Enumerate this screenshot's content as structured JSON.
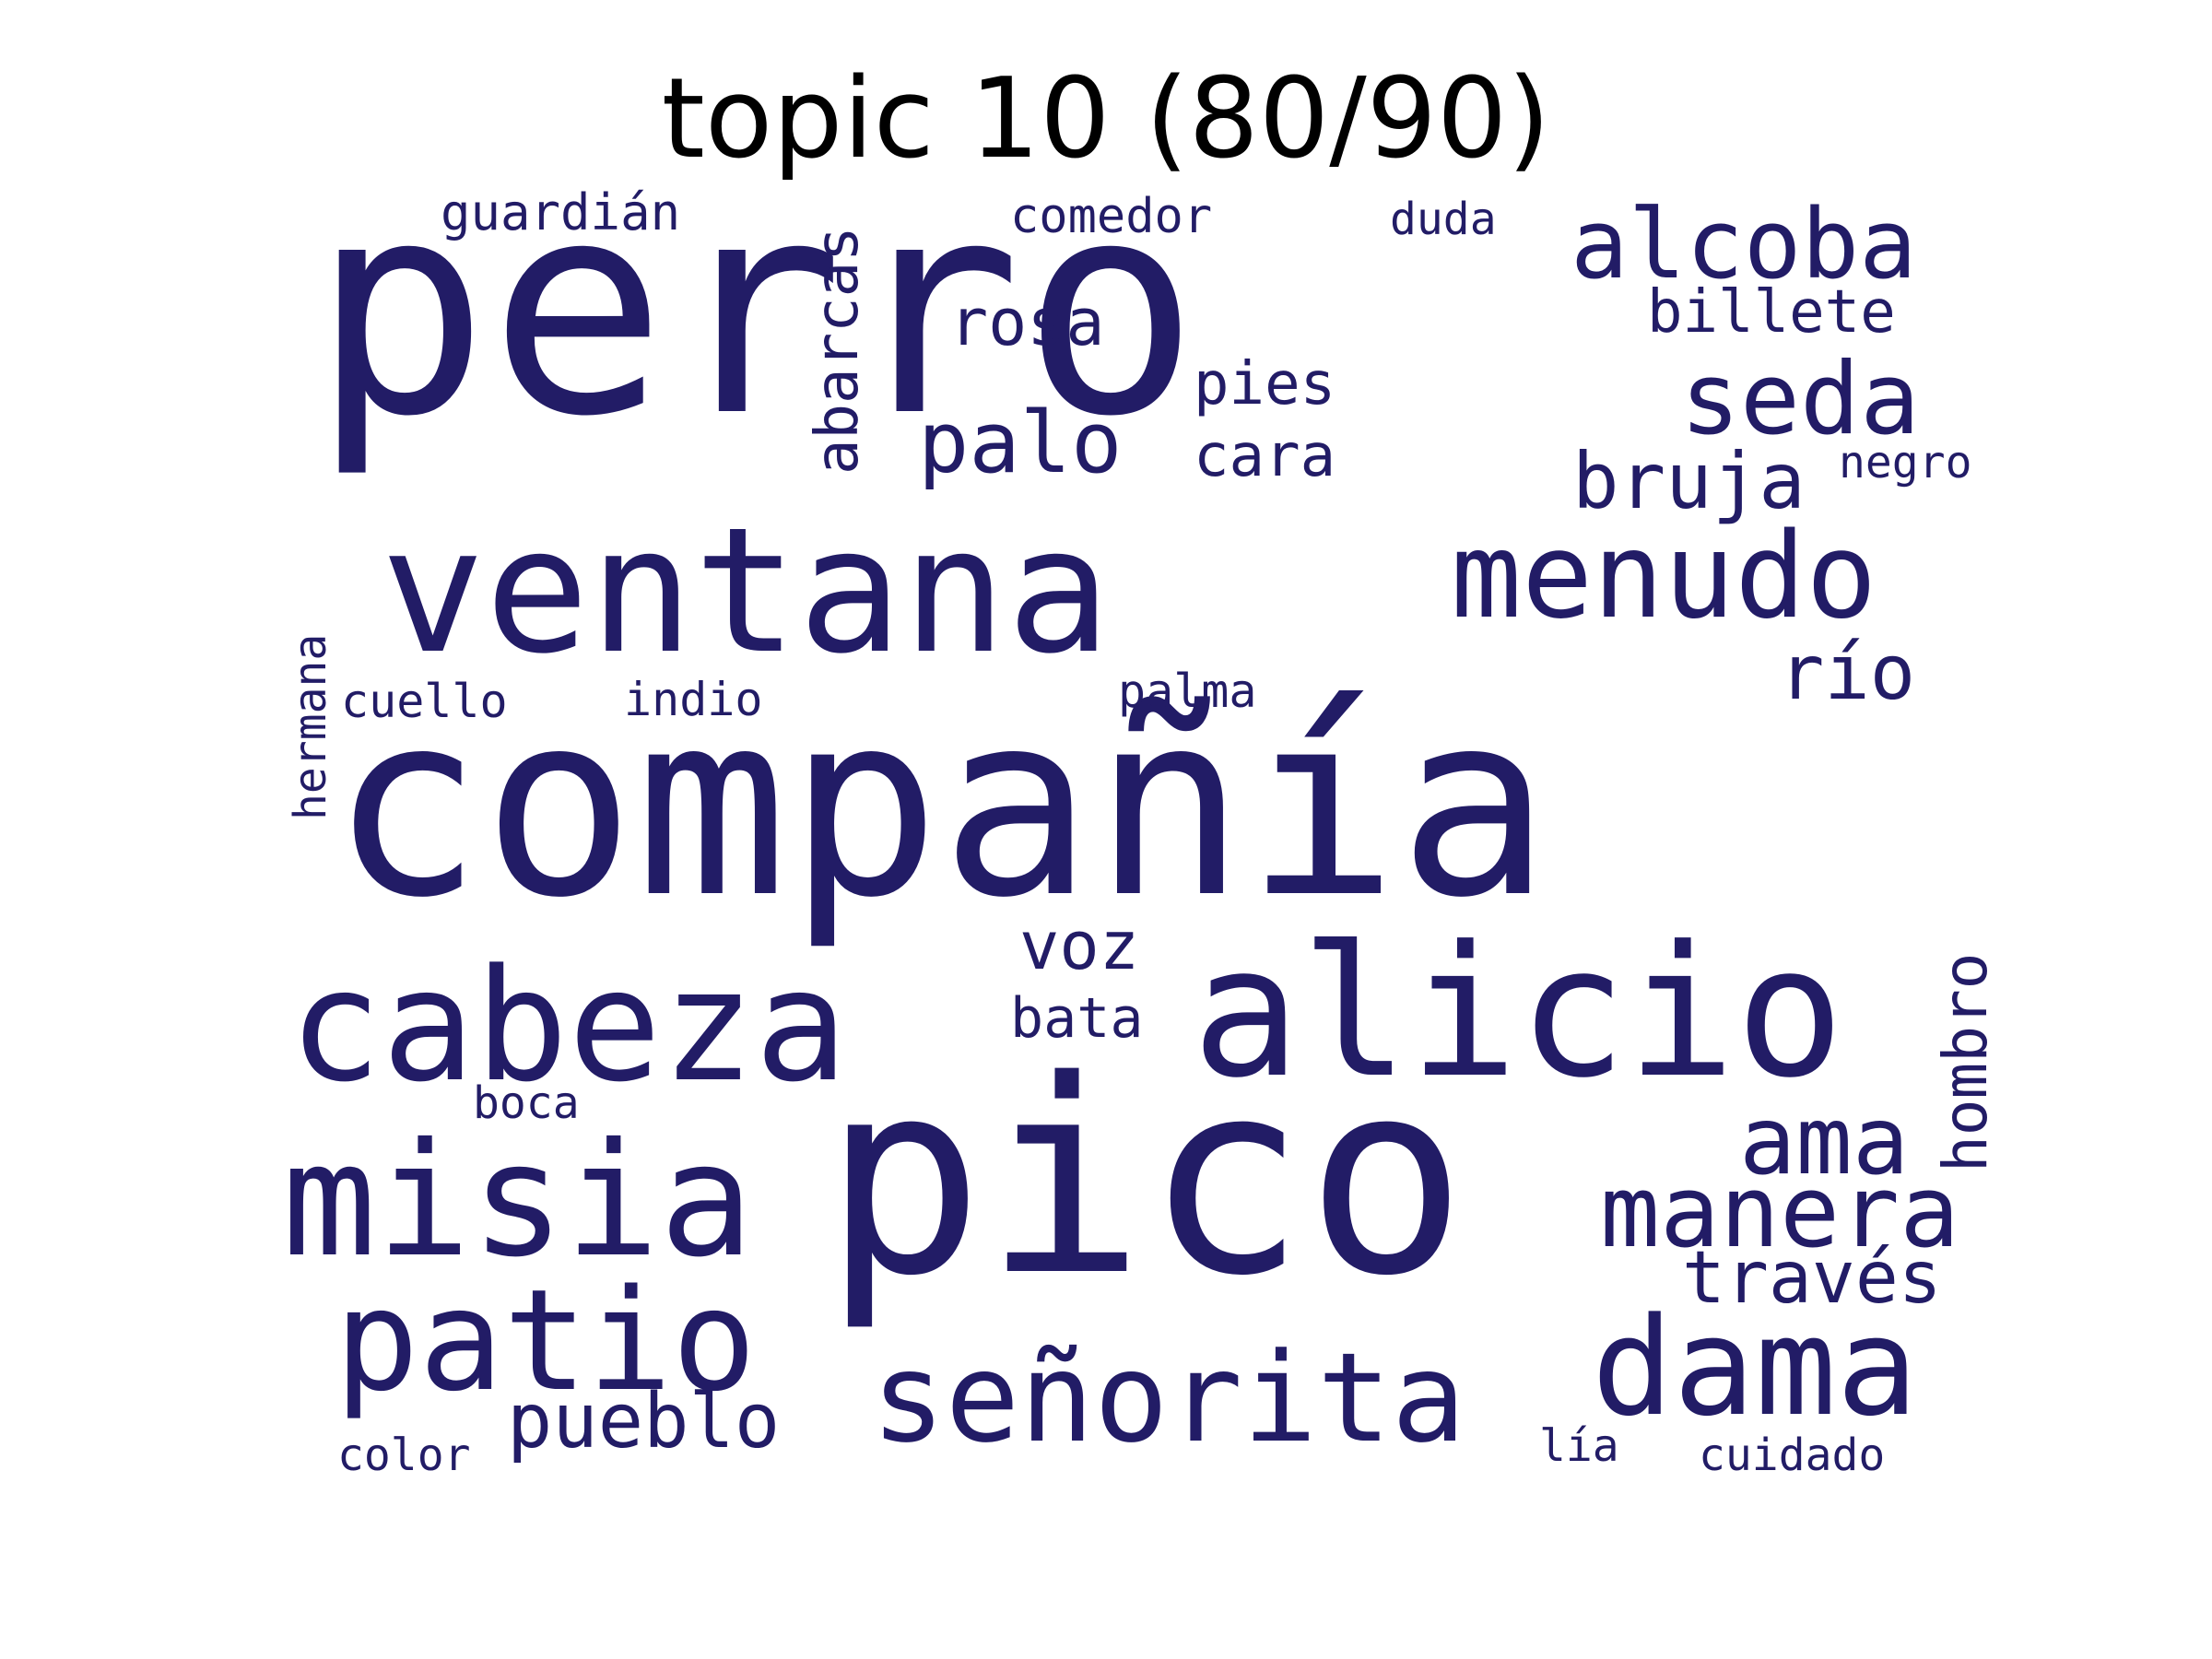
{
  "title": "topic 10 (80/90)",
  "colors": {
    "word": "#221c66",
    "title": "#000000",
    "background": "#ffffff"
  },
  "words": {
    "perro": "perro",
    "compania": "compañía",
    "ventana": "ventana",
    "pico": "pico",
    "alicio": "alicio",
    "cabeza": "cabeza",
    "misia": "misia",
    "patio": "patio",
    "dama": "dama",
    "senorita": "señorita",
    "menudo": "menudo",
    "alcoba": "alcoba",
    "seda": "seda",
    "bruja": "bruja",
    "manera": "manera",
    "ama": "ama",
    "palo": "palo",
    "rio": "río",
    "pueblo": "pueblo",
    "traves": "través",
    "rosa": "rosa",
    "abarcas": "abarcas",
    "hombro": "hombro",
    "voz": "voz",
    "billete": "billete",
    "pies": "pies",
    "cara": "cara",
    "bata": "bata",
    "guardian": "guardián",
    "comedor": "comedor",
    "duda": "duda",
    "negro": "negro",
    "hermana": "hermana",
    "cuello": "cuello",
    "indio": "indio",
    "palma": "palma",
    "boca": "boca",
    "color": "color",
    "lia": "lía",
    "cuidado": "cuidado"
  }
}
